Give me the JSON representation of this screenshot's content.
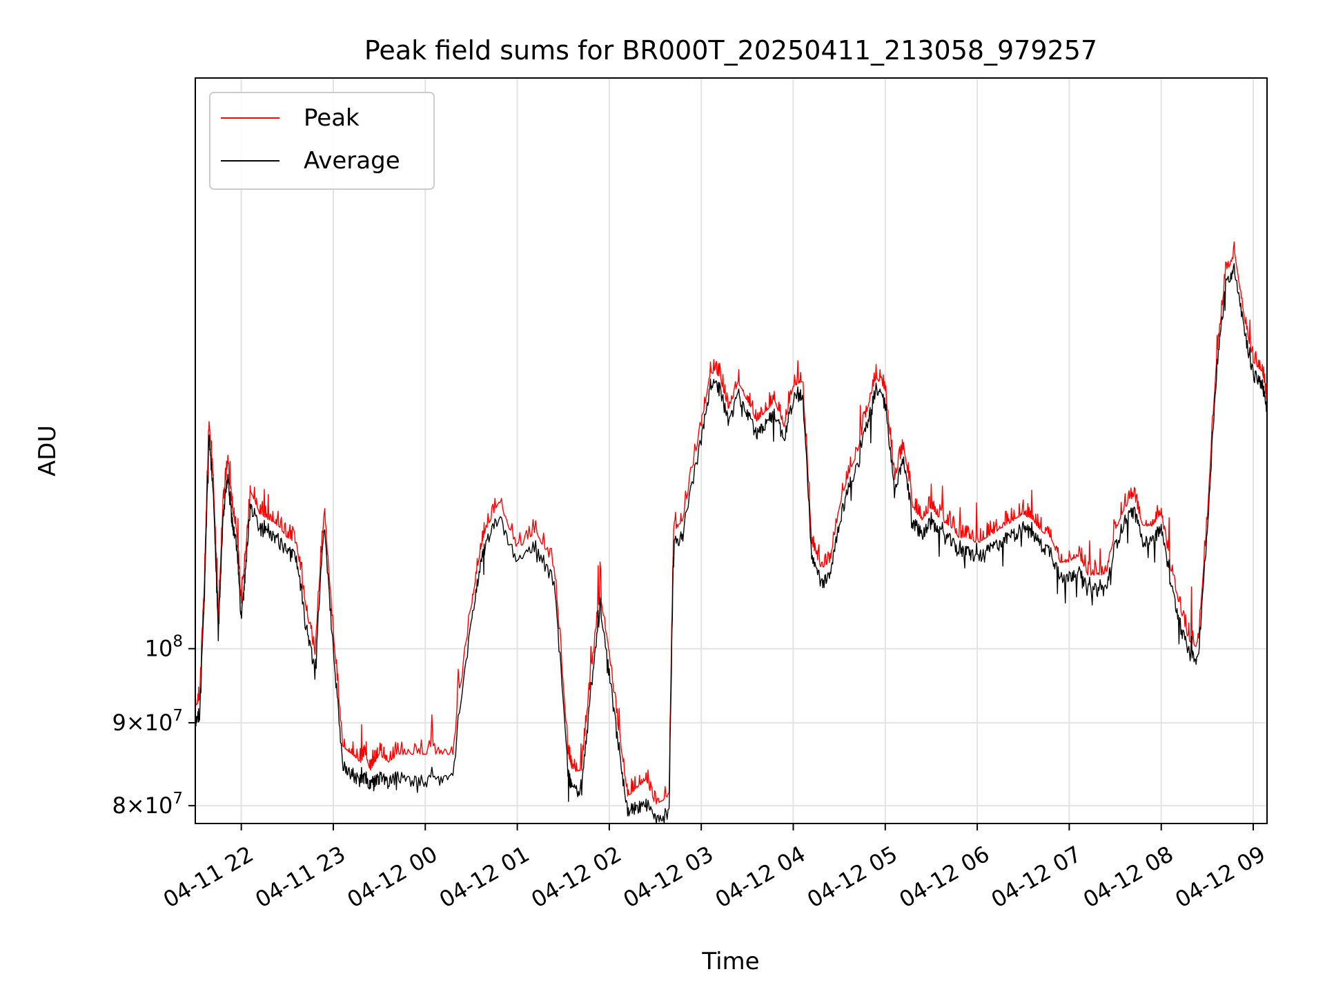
{
  "chart_data": {
    "type": "line",
    "title": "Peak field sums for BR000T_20250411_213058_979257",
    "xlabel": "Time",
    "ylabel": "ADU",
    "y_scale": "log",
    "ylim": [
      78000000,
      225000000
    ],
    "grid": true,
    "legend_position": "top-left",
    "x_ticks": [
      "04-11 22",
      "04-11 23",
      "04-12 00",
      "04-12 01",
      "04-12 02",
      "04-12 03",
      "04-12 04",
      "04-12 05",
      "04-12 06",
      "04-12 07",
      "04-12 08",
      "04-12 09"
    ],
    "y_ticks": [
      {
        "value": 80000000,
        "mantissa": "8",
        "base": "10",
        "exp": "7"
      },
      {
        "value": 90000000,
        "mantissa": "9",
        "base": "10",
        "exp": "7"
      },
      {
        "value": 100000000,
        "mantissa": "",
        "base": "10",
        "exp": "8"
      }
    ],
    "x_unit": "hours after 2025-04-11 21:30",
    "series": [
      {
        "name": "Peak",
        "color": "#ff0000",
        "x": [
          0,
          0.05,
          0.1,
          0.15,
          0.2,
          0.25,
          0.3,
          0.35,
          0.4,
          0.45,
          0.5,
          0.55,
          0.6,
          0.7,
          0.8,
          0.9,
          1.0,
          1.1,
          1.2,
          1.3,
          1.4,
          1.5,
          1.6,
          1.7,
          1.8,
          1.85,
          1.9,
          1.95,
          2.0,
          2.1,
          2.2,
          2.4,
          2.6,
          2.8,
          3.0,
          3.1,
          3.15,
          3.3,
          3.5,
          3.7,
          3.9,
          4.05,
          4.1,
          4.2,
          4.3,
          4.4,
          4.5,
          4.6,
          4.7,
          4.8,
          4.9,
          5.0,
          5.15,
          5.2,
          5.3,
          5.5,
          5.6,
          5.7,
          5.8,
          5.9,
          6.0,
          6.1,
          6.2,
          6.3,
          6.4,
          6.5,
          6.6,
          6.7,
          6.8,
          6.9,
          7.0,
          7.1,
          7.2,
          7.3,
          7.4,
          7.5,
          7.6,
          7.7,
          7.8,
          7.9,
          8.0,
          8.1,
          8.2,
          8.3,
          8.4,
          8.5,
          8.6,
          8.7,
          8.8,
          8.9,
          9.0,
          9.1,
          9.2,
          9.3,
          9.4,
          9.5,
          9.6,
          9.7,
          9.8,
          9.9,
          10.0,
          10.1,
          10.2,
          10.3,
          10.4,
          10.5,
          10.6,
          10.7,
          10.8,
          10.9,
          11.0,
          11.1,
          11.2,
          11.3,
          11.4,
          11.5,
          11.6,
          11.65
        ],
        "y": [
          92000000,
          93000000,
          110000000,
          138000000,
          125000000,
          104000000,
          122000000,
          130000000,
          122000000,
          118000000,
          106000000,
          115000000,
          125000000,
          121000000,
          120000000,
          119000000,
          117000000,
          116000000,
          106000000,
          99000000,
          121000000,
          102000000,
          87000000,
          86000000,
          85000000,
          86000000,
          84000000,
          85000000,
          86000000,
          85000000,
          86000000,
          86000000,
          86000000,
          86000000,
          106000000,
          115000000,
          118000000,
          123000000,
          115000000,
          118000000,
          112000000,
          86000000,
          84000000,
          84000000,
          96000000,
          108000000,
          99000000,
          89000000,
          81000000,
          82000000,
          83000000,
          80000000,
          81000000,
          118000000,
          120000000,
          137000000,
          148000000,
          147000000,
          140000000,
          146000000,
          142000000,
          138000000,
          140000000,
          142000000,
          137000000,
          145000000,
          146000000,
          116000000,
          112000000,
          113000000,
          122000000,
          128000000,
          132000000,
          140000000,
          147000000,
          144000000,
          127000000,
          133000000,
          122000000,
          120000000,
          122000000,
          120000000,
          119000000,
          117000000,
          117000000,
          116000000,
          117000000,
          118000000,
          119000000,
          120000000,
          121000000,
          120000000,
          118000000,
          117000000,
          113000000,
          113000000,
          114000000,
          111000000,
          111000000,
          111000000,
          118000000,
          122000000,
          124000000,
          119000000,
          119000000,
          121000000,
          112000000,
          106000000,
          101000000,
          100000000,
          120000000,
          150000000,
          170000000,
          175000000,
          160000000,
          150000000,
          148000000,
          142000000
        ]
      },
      {
        "name": "Average",
        "color": "#000000",
        "x": [
          0,
          0.05,
          0.1,
          0.15,
          0.2,
          0.25,
          0.3,
          0.35,
          0.4,
          0.45,
          0.5,
          0.55,
          0.6,
          0.7,
          0.8,
          0.9,
          1.0,
          1.1,
          1.2,
          1.3,
          1.4,
          1.5,
          1.6,
          1.7,
          1.8,
          1.85,
          1.9,
          1.95,
          2.0,
          2.1,
          2.2,
          2.4,
          2.6,
          2.8,
          3.0,
          3.1,
          3.15,
          3.3,
          3.5,
          3.7,
          3.9,
          4.05,
          4.1,
          4.2,
          4.3,
          4.4,
          4.5,
          4.6,
          4.7,
          4.8,
          4.9,
          5.0,
          5.15,
          5.2,
          5.3,
          5.5,
          5.6,
          5.7,
          5.8,
          5.9,
          6.0,
          6.1,
          6.2,
          6.3,
          6.4,
          6.5,
          6.6,
          6.7,
          6.8,
          6.9,
          7.0,
          7.1,
          7.2,
          7.3,
          7.4,
          7.5,
          7.6,
          7.7,
          7.8,
          7.9,
          8.0,
          8.1,
          8.2,
          8.3,
          8.4,
          8.5,
          8.6,
          8.7,
          8.8,
          8.9,
          9.0,
          9.1,
          9.2,
          9.3,
          9.4,
          9.5,
          9.6,
          9.7,
          9.8,
          9.9,
          10.0,
          10.1,
          10.2,
          10.3,
          10.4,
          10.5,
          10.6,
          10.7,
          10.8,
          10.9,
          11.0,
          11.1,
          11.2,
          11.3,
          11.4,
          11.5,
          11.6,
          11.65
        ],
        "y": [
          90500000,
          91500000,
          108000000,
          136000000,
          123000000,
          102000000,
          120000000,
          128000000,
          120000000,
          116000000,
          104000000,
          113000000,
          123000000,
          119000000,
          118000000,
          117000000,
          115000000,
          114000000,
          104000000,
          97000000,
          119000000,
          100000000,
          85000000,
          84000000,
          83000000,
          83500000,
          82500000,
          83000000,
          83500000,
          83000000,
          83500000,
          83000000,
          83000000,
          83500000,
          104000000,
          113000000,
          116000000,
          121000000,
          113000000,
          116000000,
          110000000,
          84000000,
          82000000,
          82000000,
          94000000,
          106000000,
          97000000,
          87000000,
          79500000,
          80000000,
          80500000,
          78500000,
          79500000,
          116000000,
          118000000,
          135000000,
          146000000,
          145000000,
          138000000,
          144000000,
          140000000,
          136000000,
          138000000,
          140000000,
          135000000,
          143000000,
          144000000,
          114000000,
          110000000,
          111000000,
          120000000,
          126000000,
          130000000,
          138000000,
          145000000,
          142000000,
          125000000,
          131000000,
          120000000,
          118000000,
          120000000,
          118000000,
          117000000,
          115000000,
          115000000,
          114000000,
          115000000,
          116000000,
          117000000,
          118000000,
          119000000,
          118000000,
          116000000,
          115000000,
          111000000,
          111000000,
          112000000,
          109000000,
          109000000,
          109000000,
          116000000,
          120000000,
          122000000,
          117000000,
          117000000,
          119000000,
          110000000,
          104000000,
          99500000,
          98500000,
          118000000,
          148000000,
          168000000,
          172000000,
          158000000,
          148000000,
          146000000,
          140000000
        ]
      }
    ]
  }
}
